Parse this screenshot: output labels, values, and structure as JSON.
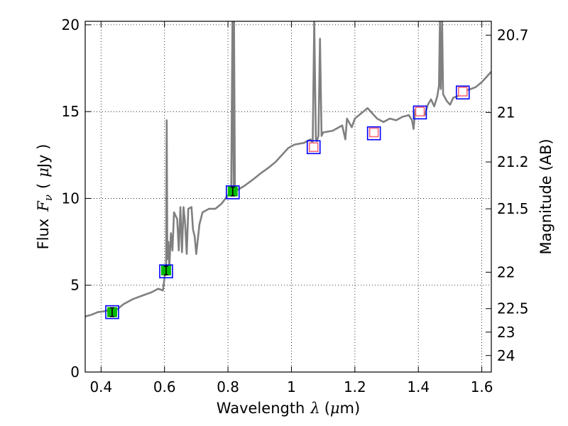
{
  "chart_data": {
    "type": "line",
    "xlabel_text": "Wavelength",
    "xlabel_symbol": "λ",
    "xlabel_unit_open": "(",
    "xlabel_unit_mu": "μ",
    "xlabel_unit_rest": "m)",
    "ylabel_text": "Flux",
    "ylabel_symbol": "F",
    "ylabel_sub": "ν",
    "ylabel_unit_open": "(",
    "ylabel_unit_mu": "μ",
    "ylabel_unit_rest": "Jy )",
    "y2label": "Magnitude (AB)",
    "xlim": [
      0.35,
      1.63
    ],
    "ylim": [
      0,
      20.2
    ],
    "grid": true,
    "x_ticks": [
      0.4,
      0.6,
      0.8,
      1.0,
      1.2,
      1.4,
      1.6
    ],
    "x_tick_labels": [
      "0.4",
      "0.6",
      "0.8",
      "1",
      "1.2",
      "1.4",
      "1.6"
    ],
    "y_ticks": [
      0,
      5,
      10,
      15,
      20
    ],
    "y_tick_labels": [
      "0",
      "5",
      "10",
      "15",
      "20"
    ],
    "y2_ticks": [
      {
        "label": "20.7",
        "flux": 19.4
      },
      {
        "label": "21",
        "flux": 14.95
      },
      {
        "label": "21.2",
        "flux": 12.1
      },
      {
        "label": "21.5",
        "flux": 9.4
      },
      {
        "label": "22",
        "flux": 5.75
      },
      {
        "label": "22.5",
        "flux": 3.65
      },
      {
        "label": "23",
        "flux": 2.3
      },
      {
        "label": "24",
        "flux": 0.95
      }
    ],
    "colors": {
      "spectrum": "#808080",
      "model_box": "#0000ff",
      "measured": "#00bb00",
      "upper_limit": "#ff6677"
    },
    "series": [
      {
        "style": "model spectrum",
        "points": [
          [
            0.35,
            3.2
          ],
          [
            0.37,
            3.3
          ],
          [
            0.39,
            3.45
          ],
          [
            0.41,
            3.5
          ],
          [
            0.43,
            3.6
          ],
          [
            0.45,
            3.6
          ],
          [
            0.47,
            3.9
          ],
          [
            0.5,
            4.2
          ],
          [
            0.53,
            4.4
          ],
          [
            0.56,
            4.6
          ],
          [
            0.58,
            4.8
          ],
          [
            0.595,
            4.7
          ],
          [
            0.605,
            6.2
          ],
          [
            0.607,
            14.5
          ],
          [
            0.609,
            6.5
          ],
          [
            0.612,
            7.5
          ],
          [
            0.615,
            5.9
          ],
          [
            0.62,
            8.0
          ],
          [
            0.625,
            7.0
          ],
          [
            0.63,
            9.2
          ],
          [
            0.64,
            8.8
          ],
          [
            0.645,
            7.0
          ],
          [
            0.65,
            9.5
          ],
          [
            0.655,
            6.9
          ],
          [
            0.66,
            9.5
          ],
          [
            0.665,
            8.5
          ],
          [
            0.67,
            6.8
          ],
          [
            0.675,
            9.4
          ],
          [
            0.685,
            9.5
          ],
          [
            0.69,
            8.2
          ],
          [
            0.695,
            7.8
          ],
          [
            0.7,
            6.8
          ],
          [
            0.71,
            8.5
          ],
          [
            0.72,
            9.2
          ],
          [
            0.74,
            9.4
          ],
          [
            0.76,
            9.4
          ],
          [
            0.78,
            9.7
          ],
          [
            0.8,
            10.2
          ],
          [
            0.81,
            10.3
          ],
          [
            0.814,
            20.2
          ],
          [
            0.818,
            10.3
          ],
          [
            0.819,
            20.2
          ],
          [
            0.822,
            10.4
          ],
          [
            0.85,
            10.7
          ],
          [
            0.88,
            11.1
          ],
          [
            0.9,
            11.4
          ],
          [
            0.93,
            11.8
          ],
          [
            0.95,
            12.1
          ],
          [
            0.97,
            12.5
          ],
          [
            0.99,
            12.9
          ],
          [
            1.01,
            13.1
          ],
          [
            1.04,
            13.2
          ],
          [
            1.06,
            13.4
          ],
          [
            1.067,
            13.2
          ],
          [
            1.072,
            20.2
          ],
          [
            1.077,
            13.4
          ],
          [
            1.08,
            13.3
          ],
          [
            1.085,
            13.6
          ],
          [
            1.09,
            19.2
          ],
          [
            1.095,
            13.6
          ],
          [
            1.1,
            13.8
          ],
          [
            1.13,
            13.9
          ],
          [
            1.16,
            14.2
          ],
          [
            1.17,
            13.4
          ],
          [
            1.175,
            14.6
          ],
          [
            1.19,
            14.1
          ],
          [
            1.2,
            14.6
          ],
          [
            1.22,
            14.9
          ],
          [
            1.24,
            15.2
          ],
          [
            1.25,
            15.0
          ],
          [
            1.27,
            14.6
          ],
          [
            1.29,
            14.4
          ],
          [
            1.31,
            14.6
          ],
          [
            1.33,
            14.5
          ],
          [
            1.35,
            14.7
          ],
          [
            1.37,
            14.8
          ],
          [
            1.38,
            14.5
          ],
          [
            1.385,
            14.0
          ],
          [
            1.39,
            15.1
          ],
          [
            1.41,
            15.1
          ],
          [
            1.42,
            14.8
          ],
          [
            1.43,
            15.4
          ],
          [
            1.44,
            15.7
          ],
          [
            1.45,
            15.3
          ],
          [
            1.46,
            15.9
          ],
          [
            1.465,
            16.5
          ],
          [
            1.468,
            20.2
          ],
          [
            1.471,
            16.3
          ],
          [
            1.475,
            20.2
          ],
          [
            1.478,
            16.0
          ],
          [
            1.49,
            15.6
          ],
          [
            1.5,
            15.4
          ],
          [
            1.51,
            15.8
          ],
          [
            1.525,
            15.9
          ],
          [
            1.55,
            16.2
          ],
          [
            1.58,
            16.4
          ],
          [
            1.6,
            16.7
          ],
          [
            1.63,
            17.3
          ]
        ]
      },
      {
        "style": "model photometry (blue squares)",
        "points": [
          [
            0.435,
            3.45
          ],
          [
            0.605,
            5.8
          ],
          [
            0.815,
            10.35
          ],
          [
            1.07,
            12.95
          ],
          [
            1.26,
            13.75
          ],
          [
            1.405,
            14.95
          ],
          [
            1.54,
            16.1
          ]
        ]
      },
      {
        "style": "measured photometry (green, with error bars)",
        "points": [
          [
            0.435,
            3.45,
            0.25
          ],
          [
            0.605,
            5.85,
            0.25
          ],
          [
            0.815,
            10.4,
            0.25
          ]
        ]
      },
      {
        "style": "upper limits (red open squares)",
        "points": [
          [
            1.07,
            12.95
          ],
          [
            1.26,
            13.8
          ],
          [
            1.405,
            15.0
          ],
          [
            1.54,
            16.15
          ]
        ]
      }
    ]
  }
}
